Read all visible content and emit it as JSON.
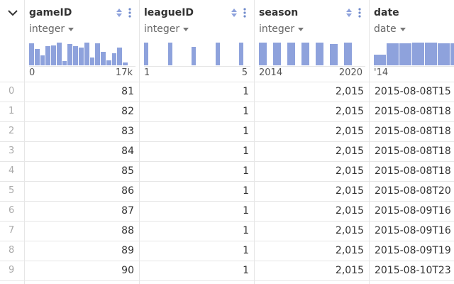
{
  "columns": [
    {
      "name": "gameID",
      "type": "integer",
      "histogram": [
        30,
        22,
        14,
        26,
        27,
        31,
        6,
        29,
        26,
        24,
        31,
        11,
        30,
        18,
        7,
        16,
        24,
        4
      ],
      "range_labels": [
        "0",
        "17k"
      ]
    },
    {
      "name": "leagueID",
      "type": "integer",
      "histogram": [
        32,
        32,
        26,
        32,
        32
      ],
      "range_labels": [
        "1",
        "5"
      ]
    },
    {
      "name": "season",
      "type": "integer",
      "histogram": [
        32,
        32,
        32,
        32,
        32,
        30,
        32
      ],
      "range_labels": [
        "2014",
        "2020"
      ]
    },
    {
      "name": "date",
      "type": "date",
      "histogram": [
        15,
        31,
        31,
        32,
        32,
        31,
        31,
        29
      ],
      "range_labels": [
        "'14"
      ]
    }
  ],
  "rows": [
    {
      "index": "0",
      "cells": [
        "81",
        "1",
        "2,015",
        "2015-08-08T15"
      ]
    },
    {
      "index": "1",
      "cells": [
        "82",
        "1",
        "2,015",
        "2015-08-08T18"
      ]
    },
    {
      "index": "2",
      "cells": [
        "83",
        "1",
        "2,015",
        "2015-08-08T18"
      ]
    },
    {
      "index": "3",
      "cells": [
        "84",
        "1",
        "2,015",
        "2015-08-08T18"
      ]
    },
    {
      "index": "4",
      "cells": [
        "85",
        "1",
        "2,015",
        "2015-08-08T18"
      ]
    },
    {
      "index": "5",
      "cells": [
        "86",
        "1",
        "2,015",
        "2015-08-08T20"
      ]
    },
    {
      "index": "6",
      "cells": [
        "87",
        "1",
        "2,015",
        "2015-08-09T16"
      ]
    },
    {
      "index": "7",
      "cells": [
        "88",
        "1",
        "2,015",
        "2015-08-09T16"
      ]
    },
    {
      "index": "8",
      "cells": [
        "89",
        "1",
        "2,015",
        "2015-08-09T19"
      ]
    },
    {
      "index": "9",
      "cells": [
        "90",
        "1",
        "2,015",
        "2015-08-10T23"
      ]
    }
  ]
}
